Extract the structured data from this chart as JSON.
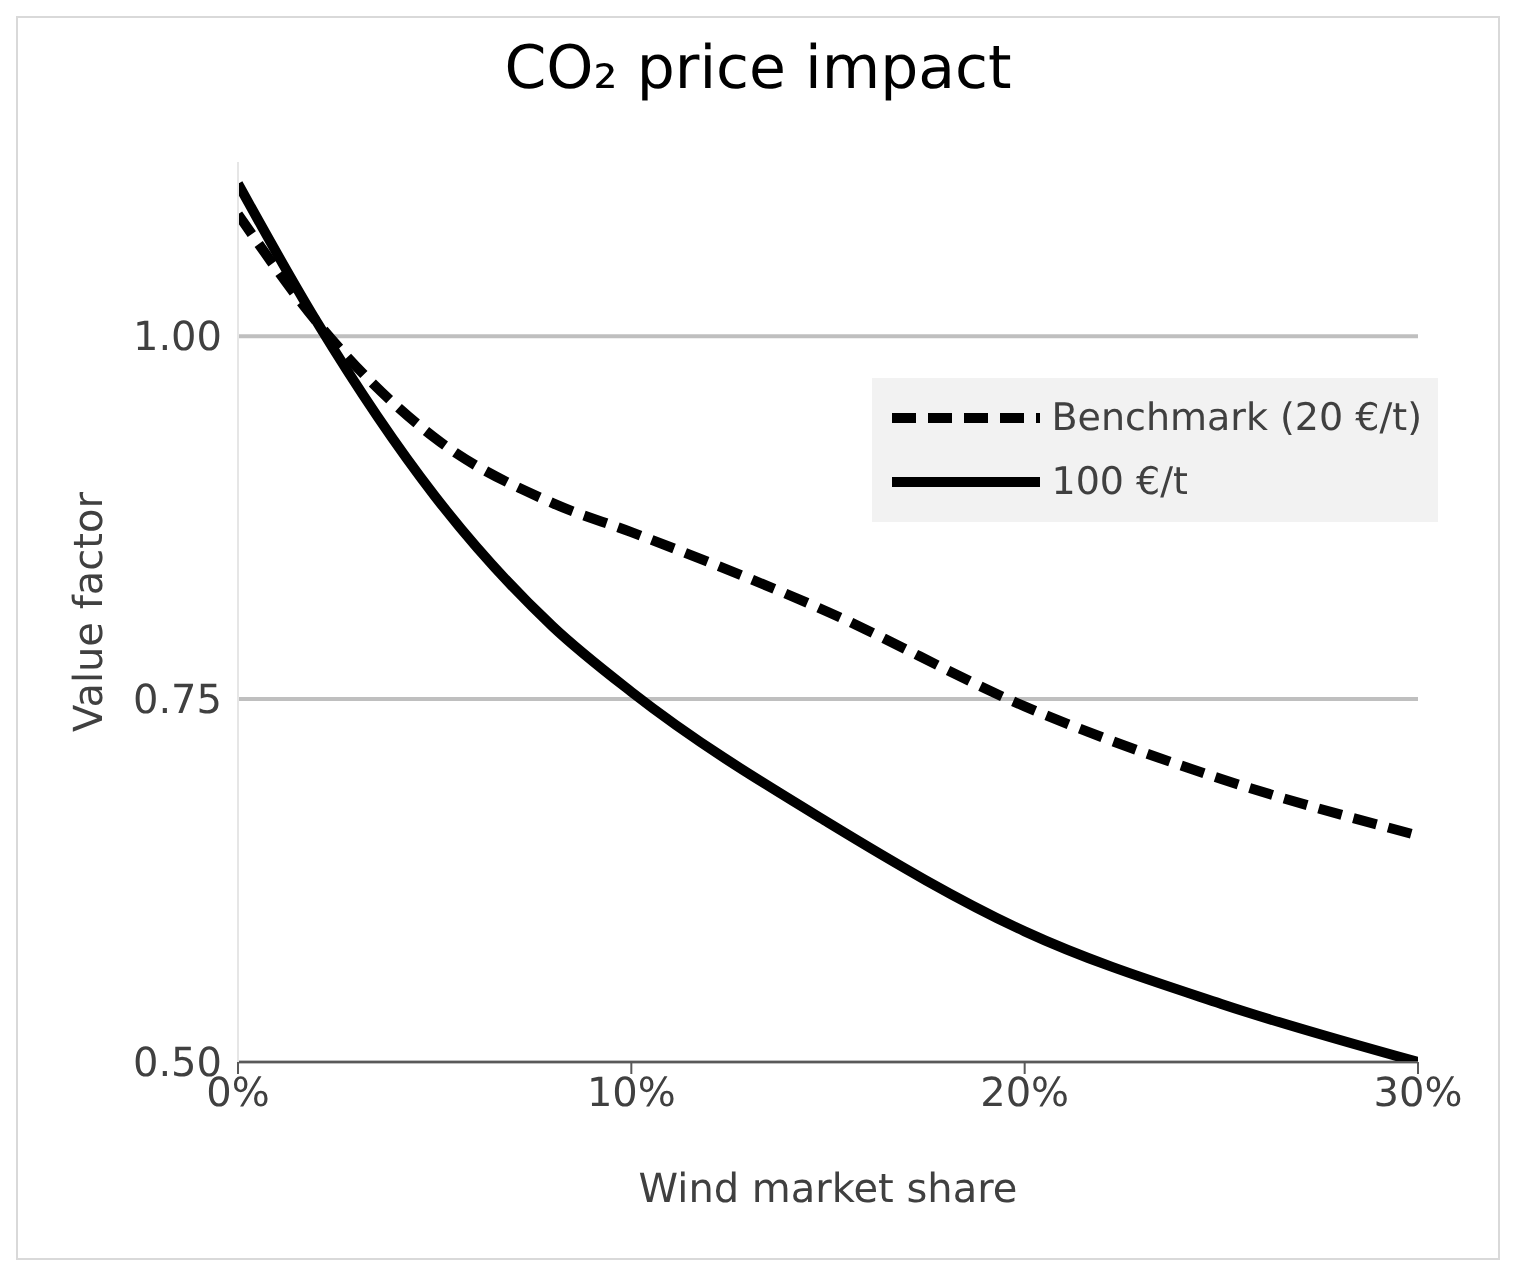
{
  "chart_data": {
    "type": "line",
    "title": "CO₂ price impact",
    "xlabel": "Wind market share",
    "ylabel": "Value factor",
    "xlim": [
      0,
      30
    ],
    "xticks": [
      {
        "value": 0,
        "label": "0%"
      },
      {
        "value": 10,
        "label": "10%"
      },
      {
        "value": 20,
        "label": "20%"
      },
      {
        "value": 30,
        "label": "30%"
      }
    ],
    "ylim": [
      0.5,
      1.12
    ],
    "yticks": [
      {
        "value": 0.5,
        "label": "0.50"
      },
      {
        "value": 0.75,
        "label": "0.75"
      },
      {
        "value": 1,
        "label": "1.00"
      }
    ],
    "grid": "y",
    "legend": "top right",
    "marker": "none",
    "series": [
      {
        "name": "Benchmark (20 €/t)",
        "color": "#000000",
        "line_style": "dashed",
        "x": [
          0,
          2,
          5,
          8,
          10,
          15,
          20,
          25,
          30
        ],
        "values": [
          1.084,
          1.01,
          0.93,
          0.885,
          0.865,
          0.81,
          0.745,
          0.695,
          0.656
        ]
      },
      {
        "name": "100 €/t",
        "color": "#000000",
        "line_style": "solid",
        "x": [
          0,
          2,
          5,
          8,
          10,
          15,
          20,
          25,
          30
        ],
        "values": [
          1.105,
          1.01,
          0.89,
          0.8,
          0.755,
          0.665,
          0.59,
          0.54,
          0.5
        ]
      }
    ]
  }
}
